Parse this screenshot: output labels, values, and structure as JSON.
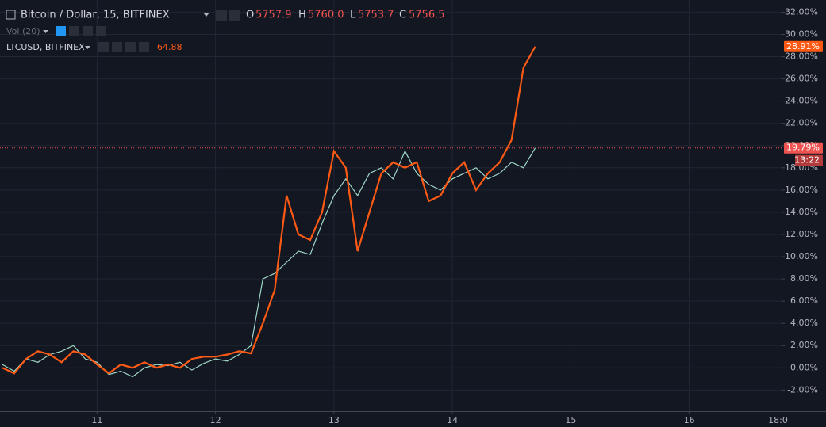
{
  "chart_data": {
    "type": "line",
    "title": "Bitcoin / Dollar, 15, BITFINEX",
    "ohlc": [
      {
        "label": "O",
        "value": "5757.9"
      },
      {
        "label": "H",
        "value": "5760.0"
      },
      {
        "label": "L",
        "value": "5753.7"
      },
      {
        "label": "C",
        "value": "5756.5"
      }
    ],
    "volume_label": "Vol (20)",
    "compare_label": "LTCUSD, BITFINEX",
    "compare_value": "64.88",
    "countdown": "13:22",
    "grid": true,
    "xlim": [
      10.18,
      16.78
    ],
    "ylim": [
      -3.9,
      33.1
    ],
    "xticks": [
      11,
      12,
      13,
      14,
      15,
      16,
      {
        "value": 16.75,
        "label": "18:0"
      }
    ],
    "yticks": [
      {
        "value": -2,
        "label": "-2.00%"
      },
      {
        "value": 0,
        "label": "0.00%"
      },
      {
        "value": 2,
        "label": "2.00%"
      },
      {
        "value": 4,
        "label": "4.00%"
      },
      {
        "value": 6,
        "label": "6.00%"
      },
      {
        "value": 8,
        "label": "8.00%"
      },
      {
        "value": 10,
        "label": "10.00%"
      },
      {
        "value": 12,
        "label": "12.00%"
      },
      {
        "value": 14,
        "label": "14.00%"
      },
      {
        "value": 16,
        "label": "16.00%"
      },
      {
        "value": 18,
        "label": "18.00%"
      },
      {
        "value": 20,
        "label": "20.00%"
      },
      {
        "value": 22,
        "label": "22.00%"
      },
      {
        "value": 24,
        "label": "24.00%"
      },
      {
        "value": 26,
        "label": "26.00%"
      },
      {
        "value": 28,
        "label": "28.00%"
      },
      {
        "value": 30,
        "label": "30.00%"
      },
      {
        "value": 32,
        "label": "32.00%"
      }
    ],
    "x": [
      10.2,
      10.3,
      10.4,
      10.5,
      10.6,
      10.7,
      10.8,
      10.9,
      11.0,
      11.1,
      11.2,
      11.3,
      11.4,
      11.5,
      11.6,
      11.7,
      11.8,
      11.9,
      12.0,
      12.1,
      12.2,
      12.3,
      12.4,
      12.5,
      12.6,
      12.7,
      12.8,
      12.9,
      13.0,
      13.1,
      13.2,
      13.3,
      13.4,
      13.5,
      13.6,
      13.7,
      13.8,
      13.9,
      14.0,
      14.1,
      14.2,
      14.3,
      14.4,
      14.5,
      14.6,
      14.7
    ],
    "series": [
      {
        "name": "Bitcoin / Dollar",
        "color": "#9fd8c6",
        "values": [
          0.3,
          -0.3,
          0.8,
          0.5,
          1.2,
          1.5,
          2.0,
          0.8,
          0.5,
          -0.6,
          -0.3,
          -0.8,
          0.0,
          0.3,
          0.2,
          0.5,
          -0.2,
          0.4,
          0.8,
          0.6,
          1.2,
          2.0,
          8.0,
          8.5,
          9.5,
          10.5,
          10.2,
          13.0,
          15.5,
          17.0,
          15.5,
          17.5,
          18.0,
          17.0,
          19.5,
          17.5,
          16.5,
          16.0,
          17.0,
          17.5,
          18.0,
          17.0,
          17.5,
          18.5,
          18.0,
          19.79
        ],
        "last": {
          "value": 19.79,
          "label": "19.79%"
        },
        "last_color": "#ef5350"
      },
      {
        "name": "LTCUSD",
        "color": "#ff5a14",
        "values": [
          0.0,
          -0.5,
          0.8,
          1.5,
          1.2,
          0.5,
          1.5,
          1.2,
          0.3,
          -0.5,
          0.3,
          0.0,
          0.5,
          0.0,
          0.3,
          0.0,
          0.8,
          1.0,
          1.0,
          1.2,
          1.5,
          1.3,
          4.0,
          7.0,
          15.5,
          12.0,
          11.5,
          14.0,
          19.5,
          18.0,
          10.5,
          14.0,
          17.5,
          18.5,
          18.0,
          18.5,
          15.0,
          15.5,
          17.5,
          18.5,
          16.0,
          17.5,
          18.5,
          20.5,
          27.0,
          28.91
        ],
        "last": {
          "value": 28.91,
          "label": "28.91%"
        },
        "last_color": "#ff5a14"
      }
    ]
  }
}
